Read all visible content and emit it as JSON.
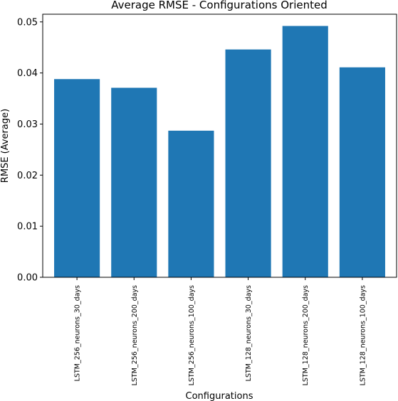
{
  "chart_data": {
    "type": "bar",
    "title": "Average RMSE - Configurations Oriented",
    "xlabel": "Configurations",
    "ylabel": "RMSE (Average)",
    "categories": [
      "LSTM_256_neurons_30_days",
      "LSTM_256_neurons_200_days",
      "LSTM_256_neurons_100_days",
      "LSTM_128_neurons_30_days",
      "LSTM_128_neurons_200_days",
      "LSTM_128_neurons_100_days"
    ],
    "values": [
      0.0388,
      0.0371,
      0.0287,
      0.0446,
      0.0492,
      0.0411
    ],
    "ylim": [
      0,
      0.0515
    ],
    "yticks": [
      "0.00",
      "0.01",
      "0.02",
      "0.03",
      "0.04",
      "0.05"
    ],
    "grid": false,
    "bar_color": "#1f77b4"
  }
}
